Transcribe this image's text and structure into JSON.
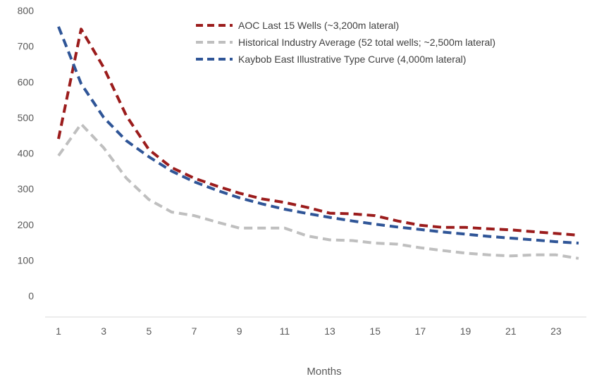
{
  "chart_data": {
    "type": "line",
    "xlabel": "Months",
    "ylabel": "",
    "ylim": [
      0,
      800
    ],
    "y_ticks": [
      0,
      100,
      200,
      300,
      400,
      500,
      600,
      700,
      800
    ],
    "x_ticks": [
      1,
      3,
      5,
      7,
      9,
      11,
      13,
      15,
      17,
      19,
      21,
      23
    ],
    "xlim": [
      1,
      24
    ],
    "grid": false,
    "legend_position": "top-right",
    "line_style": "dashed",
    "x": [
      1,
      2,
      3,
      4,
      5,
      6,
      7,
      8,
      9,
      10,
      11,
      12,
      13,
      14,
      15,
      16,
      17,
      18,
      19,
      20,
      21,
      22,
      23,
      24
    ],
    "series": [
      {
        "name": "AOC Last 15 Wells (~3,200m lateral)",
        "color": "#9B1C1C",
        "values": [
          440,
          748,
          640,
          505,
          410,
          360,
          330,
          308,
          288,
          272,
          262,
          248,
          232,
          230,
          225,
          210,
          198,
          192,
          192,
          188,
          185,
          180,
          175,
          170
        ]
      },
      {
        "name": "Historical Industry Average (52 total wells; ~2,500m lateral)",
        "color": "#BFBFBF",
        "values": [
          393,
          482,
          415,
          330,
          270,
          235,
          225,
          207,
          190,
          190,
          190,
          168,
          157,
          155,
          148,
          145,
          135,
          127,
          120,
          115,
          112,
          115,
          115,
          105
        ]
      },
      {
        "name": "Kaybob East Illustrative Type Curve (4,000m lateral)",
        "color": "#2F5597",
        "values": [
          755,
          595,
          500,
          435,
          390,
          350,
          320,
          296,
          275,
          258,
          243,
          231,
          220,
          210,
          201,
          193,
          186,
          179,
          173,
          167,
          162,
          157,
          152,
          148
        ]
      }
    ]
  }
}
